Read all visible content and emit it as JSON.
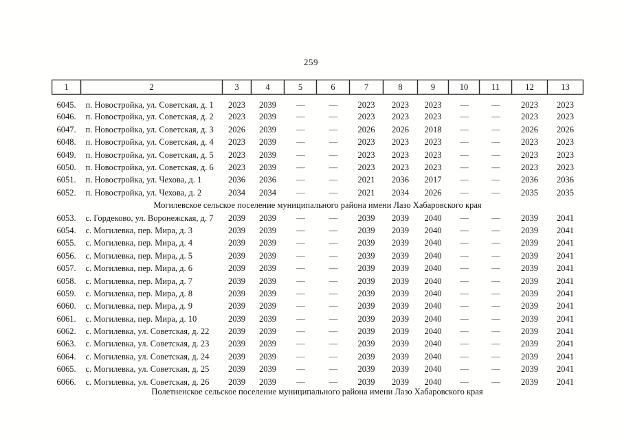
{
  "page": {
    "number": "259"
  },
  "colors": {
    "background": "#ffffff",
    "text": "#161616",
    "header_border": "#2b2b2b",
    "header_border_outer": "#9a9a9a"
  },
  "table": {
    "columns": [
      "1",
      "2",
      "3",
      "4",
      "5",
      "6",
      "7",
      "8",
      "9",
      "10",
      "11",
      "12",
      "13"
    ],
    "rows": [
      {
        "type": "data",
        "cells": [
          "6045.",
          "п. Новостройка, ул. Советская, д. 1",
          "2023",
          "2039",
          "—",
          "—",
          "2023",
          "2023",
          "2023",
          "—",
          "—",
          "2023",
          "2023"
        ]
      },
      {
        "type": "data",
        "cells": [
          "6046.",
          "п. Новостройка, ул. Советская, д. 2",
          "2023",
          "2039",
          "—",
          "—",
          "2023",
          "2023",
          "2023",
          "—",
          "—",
          "2023",
          "2023"
        ]
      },
      {
        "type": "data",
        "cells": [
          "6047.",
          "п. Новостройка, ул. Советская, д. 3",
          "2026",
          "2039",
          "—",
          "—",
          "2026",
          "2026",
          "2018",
          "—",
          "—",
          "2026",
          "2026"
        ]
      },
      {
        "type": "data",
        "cells": [
          "6048.",
          "п. Новостройка, ул. Советская, д. 4",
          "2023",
          "2039",
          "—",
          "—",
          "2023",
          "2023",
          "2023",
          "—",
          "—",
          "2023",
          "2023"
        ]
      },
      {
        "type": "data",
        "cells": [
          "6049.",
          "п. Новостройка, ул. Советская, д. 5",
          "2023",
          "2039",
          "—",
          "—",
          "2023",
          "2023",
          "2023",
          "—",
          "—",
          "2023",
          "2023"
        ]
      },
      {
        "type": "data",
        "cells": [
          "6050.",
          "п. Новостройка, ул. Советская, д. 6",
          "2023",
          "2039",
          "—",
          "—",
          "2023",
          "2023",
          "2023",
          "—",
          "—",
          "2023",
          "2023"
        ]
      },
      {
        "type": "data",
        "cells": [
          "6051.",
          "п. Новостройка, ул. Чехова, д. 1",
          "2036",
          "2036",
          "—",
          "—",
          "2021",
          "2036",
          "2017",
          "—",
          "—",
          "2036",
          "2036"
        ]
      },
      {
        "type": "data",
        "cells": [
          "6052.",
          "п. Новостройка, ул. Чехова, д. 2",
          "2034",
          "2034",
          "—",
          "—",
          "2021",
          "2034",
          "2026",
          "—",
          "—",
          "2035",
          "2035"
        ]
      },
      {
        "type": "section",
        "label": "Могилевское сельское поселение муниципального района имени Лазо Хабаровского края"
      },
      {
        "type": "data",
        "cells": [
          "6053.",
          "с. Гордеково, ул. Воронежская, д. 7",
          "2039",
          "2039",
          "—",
          "—",
          "2039",
          "2039",
          "2040",
          "—",
          "—",
          "2039",
          "2041"
        ]
      },
      {
        "type": "data",
        "cells": [
          "6054.",
          "с. Могилевка, пер. Мира, д. 3",
          "2039",
          "2039",
          "—",
          "—",
          "2039",
          "2039",
          "2040",
          "—",
          "—",
          "2039",
          "2041"
        ]
      },
      {
        "type": "data",
        "cells": [
          "6055.",
          "с. Могилевка, пер. Мира, д. 4",
          "2039",
          "2039",
          "—",
          "—",
          "2039",
          "2039",
          "2040",
          "—",
          "—",
          "2039",
          "2041"
        ]
      },
      {
        "type": "data",
        "cells": [
          "6056.",
          "с. Могилевка, пер. Мира, д. 5",
          "2039",
          "2039",
          "—",
          "—",
          "2039",
          "2039",
          "2040",
          "—",
          "—",
          "2039",
          "2041"
        ]
      },
      {
        "type": "data",
        "cells": [
          "6057.",
          "с. Могилевка, пер. Мира, д. 6",
          "2039",
          "2039",
          "—",
          "—",
          "2039",
          "2039",
          "2040",
          "—",
          "—",
          "2039",
          "2041"
        ]
      },
      {
        "type": "data",
        "cells": [
          "6058.",
          "с. Могилевка, пер. Мира, д. 7",
          "2039",
          "2039",
          "—",
          "—",
          "2039",
          "2039",
          "2040",
          "—",
          "—",
          "2039",
          "2041"
        ]
      },
      {
        "type": "data",
        "cells": [
          "6059.",
          "с. Могилевка, пер. Мира, д. 8",
          "2039",
          "2039",
          "—",
          "—",
          "2039",
          "2039",
          "2040",
          "—",
          "—",
          "2039",
          "2041"
        ]
      },
      {
        "type": "data",
        "cells": [
          "6060.",
          "с. Могилевка, пер. Мира, д. 9",
          "2039",
          "2039",
          "—",
          "—",
          "2039",
          "2039",
          "2040",
          "—",
          "—",
          "2039",
          "2041"
        ]
      },
      {
        "type": "data",
        "cells": [
          "6061.",
          "с. Могилевка, пер. Мира, д. 10",
          "2039",
          "2039",
          "—",
          "—",
          "2039",
          "2039",
          "2040",
          "—",
          "—",
          "2039",
          "2041"
        ]
      },
      {
        "type": "data",
        "cells": [
          "6062.",
          "с. Могилевка, ул. Советская, д. 22",
          "2039",
          "2039",
          "—",
          "—",
          "2039",
          "2039",
          "2040",
          "—",
          "—",
          "2039",
          "2041"
        ]
      },
      {
        "type": "data",
        "cells": [
          "6063.",
          "с. Могилевка, ул. Советская, д. 23",
          "2039",
          "2039",
          "—",
          "—",
          "2039",
          "2039",
          "2040",
          "—",
          "—",
          "2039",
          "2041"
        ]
      },
      {
        "type": "data",
        "cells": [
          "6064.",
          "с. Могилевка, ул. Советская, д. 24",
          "2039",
          "2039",
          "—",
          "—",
          "2039",
          "2039",
          "2040",
          "—",
          "—",
          "2039",
          "2041"
        ]
      },
      {
        "type": "data",
        "cells": [
          "6065.",
          "с. Могилевка, ул. Советская, д. 25",
          "2039",
          "2039",
          "—",
          "—",
          "2039",
          "2039",
          "2040",
          "—",
          "—",
          "2039",
          "2041"
        ]
      },
      {
        "type": "data",
        "cells": [
          "6066.",
          "с. Могилевка, ул. Советская, д. 26",
          "2039",
          "2039",
          "—",
          "—",
          "2039",
          "2039",
          "2040",
          "—",
          "—",
          "2039",
          "2041"
        ]
      }
    ]
  },
  "footer": {
    "label": "Полетненское сельское поселение муниципального района имени Лазо Хабаровского края"
  }
}
